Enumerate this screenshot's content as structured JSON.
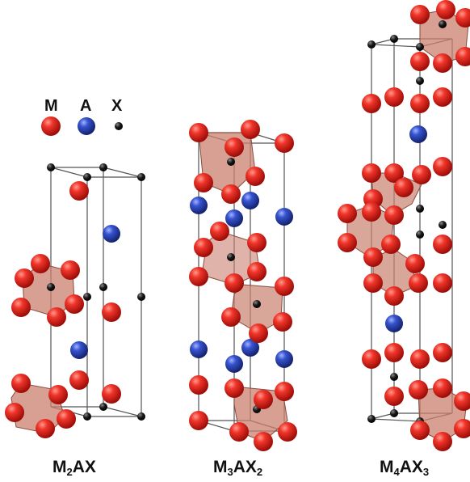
{
  "legend": {
    "m_label": "M",
    "a_label": "A",
    "x_label": "X"
  },
  "structures": [
    {
      "formula_main": "M",
      "sub1": "2",
      "mid": "AX",
      "sub2": ""
    },
    {
      "formula_main": "M",
      "sub1": "3",
      "mid": "AX",
      "sub2": "2"
    },
    {
      "formula_main": "M",
      "sub1": "4",
      "mid": "AX",
      "sub2": "3"
    }
  ],
  "colors": {
    "m_atom": "#e0231b",
    "a_atom": "#2a46b5",
    "x_atom": "#111111",
    "octahedron": "#c9806f",
    "cell_line": "#555555"
  }
}
